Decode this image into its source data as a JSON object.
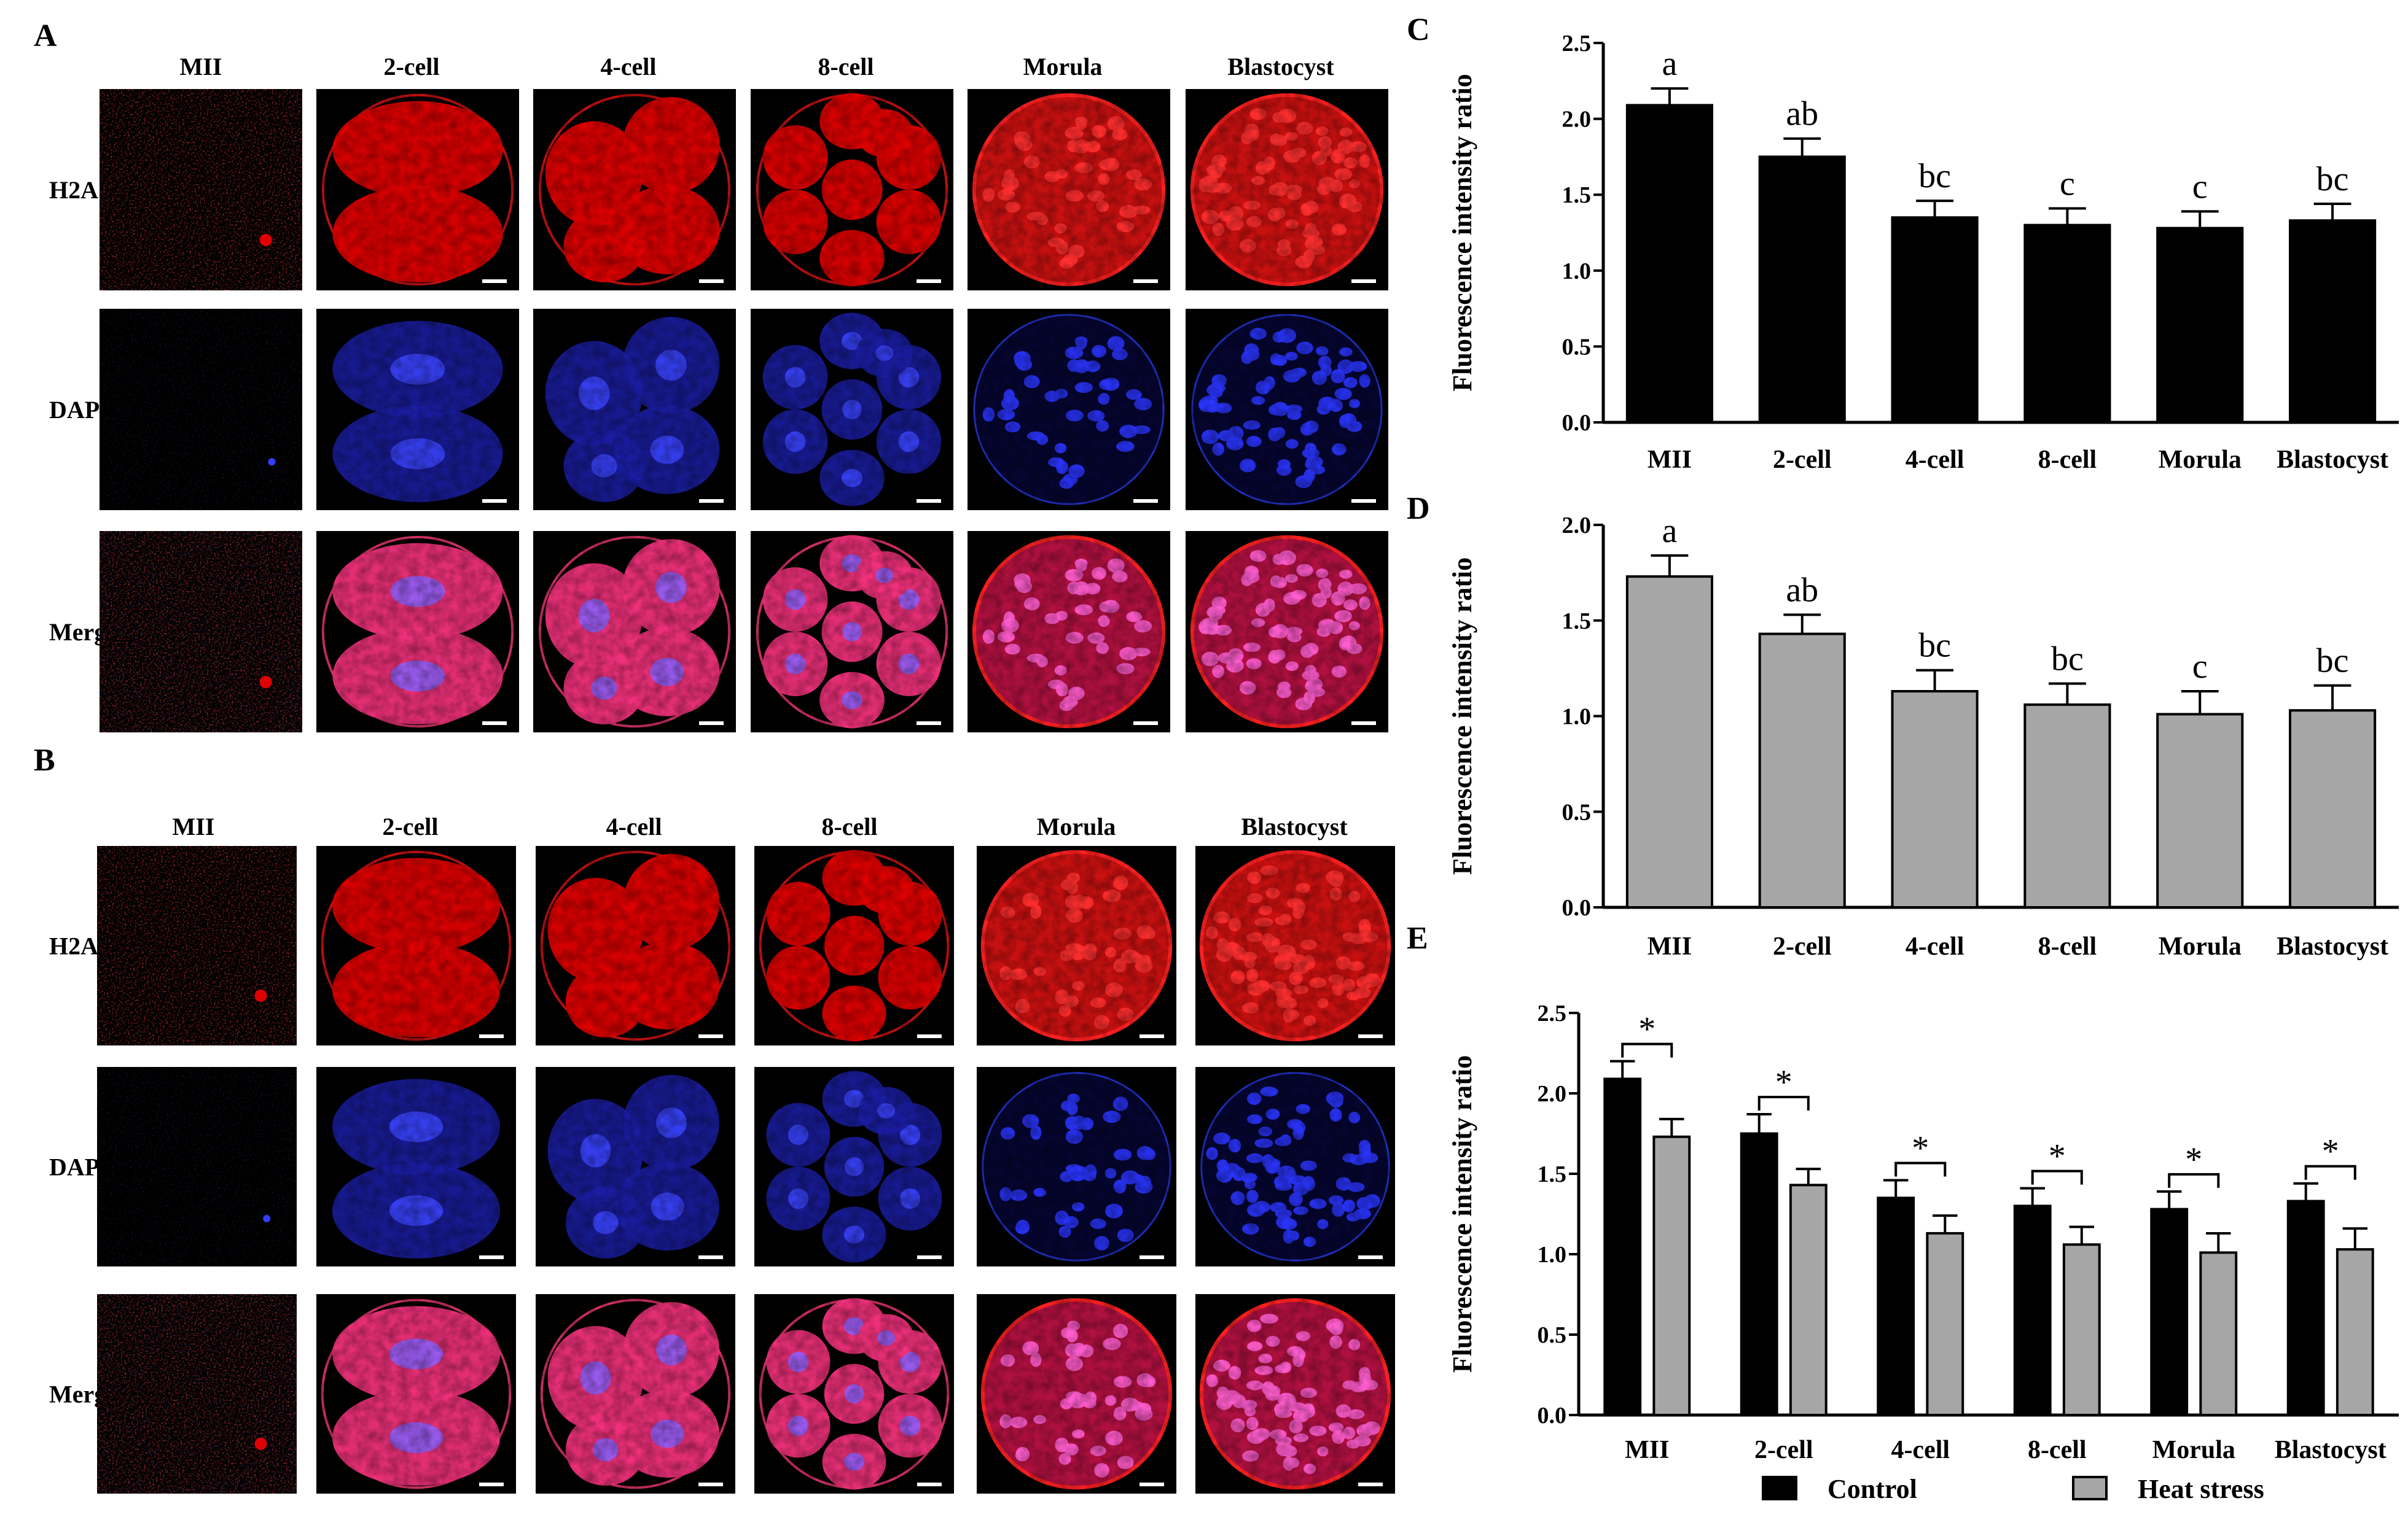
{
  "panels": {
    "A": {
      "letter": "A",
      "columns": [
        "MII",
        "2-cell",
        "4-cell",
        "8-cell",
        "Morula",
        "Blastocyst"
      ],
      "rows": [
        "H2A",
        "DAPI",
        "Merge"
      ]
    },
    "B": {
      "letter": "B",
      "columns": [
        "MII",
        "2-cell",
        "4-cell",
        "8-cell",
        "Morula",
        "Blastocyst"
      ],
      "rows": [
        "H2A",
        "DAPI",
        "Merge"
      ]
    }
  },
  "colors": {
    "control": "#000000",
    "heat_stress": "#a6a6a6",
    "h2a_stain": "#e00000",
    "dapi_stain": "#1a22c8",
    "merge_stain": "#f0307a"
  },
  "chart_data": [
    {
      "panel": "C",
      "type": "bar",
      "ylabel": "Fluorescence intensity ratio",
      "categories": [
        "MII",
        "2-cell",
        "4-cell",
        "8-cell",
        "Morula",
        "Blastocyst"
      ],
      "values": [
        2.09,
        1.75,
        1.35,
        1.3,
        1.28,
        1.33
      ],
      "errors": [
        0.11,
        0.12,
        0.11,
        0.11,
        0.11,
        0.11
      ],
      "annotations": [
        "a",
        "ab",
        "bc",
        "c",
        "c",
        "bc"
      ],
      "ylim": [
        0,
        2.5
      ],
      "yticks": [
        "0.0",
        "0.5",
        "1.0",
        "1.5",
        "2.0",
        "2.5"
      ],
      "color": "#000000"
    },
    {
      "panel": "D",
      "type": "bar",
      "ylabel": "Fluorescence intensity ratio",
      "categories": [
        "MII",
        "2-cell",
        "4-cell",
        "8-cell",
        "Morula",
        "Blastocyst"
      ],
      "values": [
        1.73,
        1.43,
        1.13,
        1.06,
        1.01,
        1.03
      ],
      "errors": [
        0.11,
        0.1,
        0.11,
        0.11,
        0.12,
        0.13
      ],
      "annotations": [
        "a",
        "ab",
        "bc",
        "bc",
        "c",
        "bc"
      ],
      "ylim": [
        0,
        2.0
      ],
      "yticks": [
        "0.0",
        "0.5",
        "1.0",
        "1.5",
        "2.0"
      ],
      "color": "#a6a6a6"
    },
    {
      "panel": "E",
      "type": "bar",
      "ylabel": "Fluorescence intensity ratio",
      "categories": [
        "MII",
        "2-cell",
        "4-cell",
        "8-cell",
        "Morula",
        "Blastocyst"
      ],
      "series": [
        {
          "name": "Control",
          "values": [
            2.09,
            1.75,
            1.35,
            1.3,
            1.28,
            1.33
          ],
          "errors": [
            0.11,
            0.12,
            0.11,
            0.11,
            0.11,
            0.11
          ],
          "color": "#000000"
        },
        {
          "name": "Heat stress",
          "values": [
            1.73,
            1.43,
            1.13,
            1.06,
            1.01,
            1.03
          ],
          "errors": [
            0.11,
            0.1,
            0.11,
            0.11,
            0.12,
            0.13
          ],
          "color": "#a6a6a6"
        }
      ],
      "significance": [
        "*",
        "*",
        "*",
        "*",
        "*",
        "*"
      ],
      "ylim": [
        0,
        2.5
      ],
      "yticks": [
        "0.0",
        "0.5",
        "1.0",
        "1.5",
        "2.0",
        "2.5"
      ],
      "legend": "bottom"
    }
  ]
}
